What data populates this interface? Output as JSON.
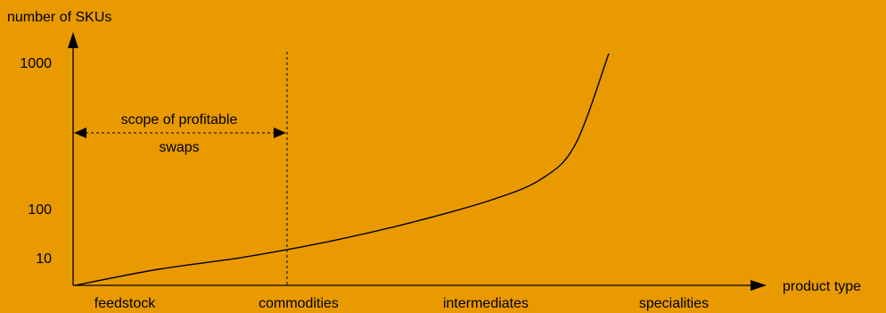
{
  "chart_data": {
    "type": "line",
    "ylabel": "number of SKUs",
    "xlabel": "product type",
    "y_ticks": [
      {
        "label": "1000",
        "value": 1000
      },
      {
        "label": "100",
        "value": 100
      },
      {
        "label": "10",
        "value": 10
      }
    ],
    "categories": [
      "feedstock",
      "commodities",
      "intermediates",
      "specialities"
    ],
    "divider_after": "commodities",
    "annotation": {
      "line1": "scope of profitable",
      "line2": "swaps"
    },
    "curve": {
      "x": [
        0,
        0.5,
        1.0,
        1.5,
        2.0,
        2.5,
        2.8,
        3.0,
        3.2
      ],
      "y": [
        0,
        6,
        12,
        40,
        75,
        160,
        290,
        500,
        1200
      ]
    },
    "colors": {
      "background": "#E89A00",
      "ink": "#000000"
    }
  }
}
